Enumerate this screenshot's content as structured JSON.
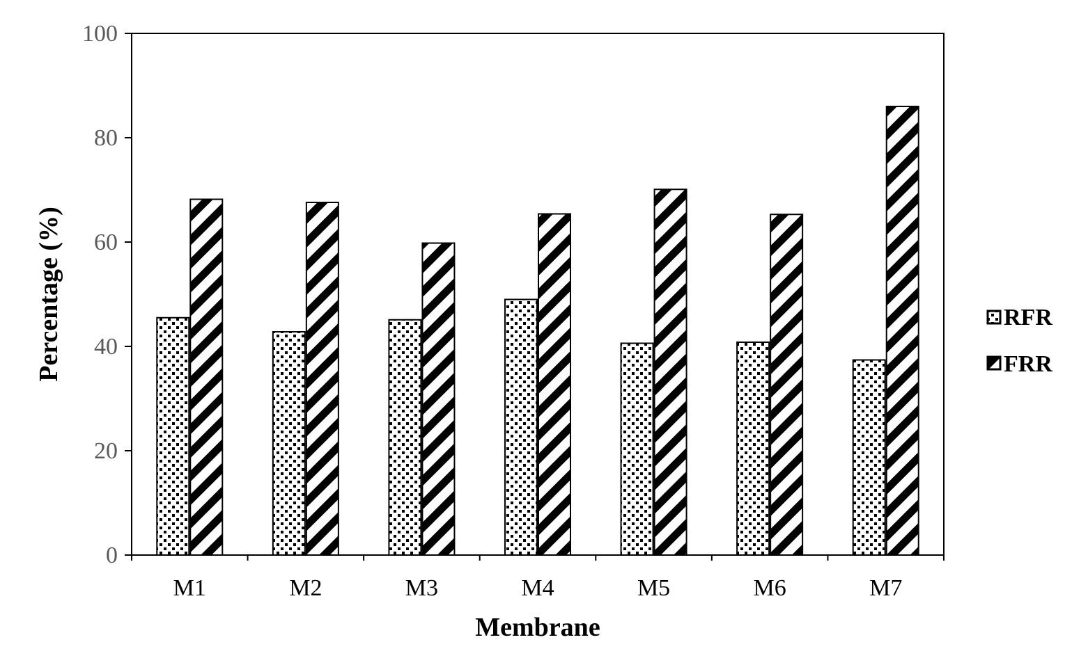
{
  "chart_data": {
    "type": "bar",
    "categories": [
      "M1",
      "M2",
      "M3",
      "M4",
      "M5",
      "M6",
      "M7"
    ],
    "series": [
      {
        "name": "RFR",
        "values": [
          45.5,
          42.8,
          45.1,
          49.0,
          40.6,
          40.8,
          37.4
        ],
        "pattern": "dotted-squares"
      },
      {
        "name": "FRR",
        "values": [
          68.2,
          67.6,
          59.8,
          65.4,
          70.1,
          65.3,
          86.0
        ],
        "pattern": "diagonal-stripes"
      }
    ],
    "title": "",
    "xlabel": "Membrane",
    "ylabel": "Percentage (%)",
    "ylim": [
      0,
      100
    ],
    "yticks": [
      0,
      20,
      40,
      60,
      80,
      100
    ],
    "grid": false,
    "legend_position": "right",
    "colors": {
      "bar_stroke": "#000000",
      "tick_text": "#595959",
      "text": "#000000",
      "background": "#ffffff"
    }
  }
}
